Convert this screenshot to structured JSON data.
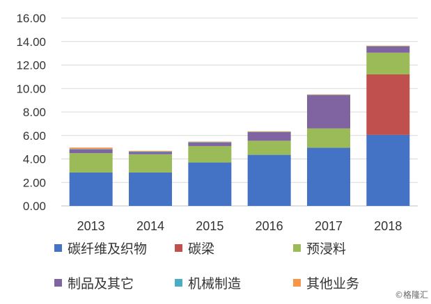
{
  "chart_data": {
    "type": "bar",
    "stacked": true,
    "categories": [
      "2013",
      "2014",
      "2015",
      "2016",
      "2017",
      "2018"
    ],
    "ylim": [
      0,
      16
    ],
    "yticks": [
      "0.00",
      "2.00",
      "4.00",
      "6.00",
      "8.00",
      "10.00",
      "12.00",
      "14.00",
      "16.00"
    ],
    "grid": true,
    "legend_position": "bottom",
    "series": [
      {
        "name": "碳纤维及织物",
        "color": "#4472C4",
        "values": [
          2.85,
          2.85,
          3.7,
          4.35,
          4.95,
          6.05
        ]
      },
      {
        "name": "碳梁",
        "color": "#C0504D",
        "values": [
          0,
          0,
          0,
          0,
          0,
          5.15
        ]
      },
      {
        "name": "预浸料",
        "color": "#9BBB59",
        "values": [
          1.65,
          1.55,
          1.4,
          1.2,
          1.65,
          1.85
        ]
      },
      {
        "name": "制品及其它",
        "color": "#8064A2",
        "values": [
          0.3,
          0.2,
          0.3,
          0.75,
          2.85,
          0.55
        ]
      },
      {
        "name": "机械制造",
        "color": "#4BACC6",
        "values": [
          0.05,
          0.03,
          0.03,
          0.02,
          0.02,
          0.02
        ]
      },
      {
        "name": "其他业务",
        "color": "#F79646",
        "values": [
          0.12,
          0.06,
          0.05,
          0.03,
          0.03,
          0.03
        ]
      }
    ]
  },
  "credit": "©格隆汇"
}
